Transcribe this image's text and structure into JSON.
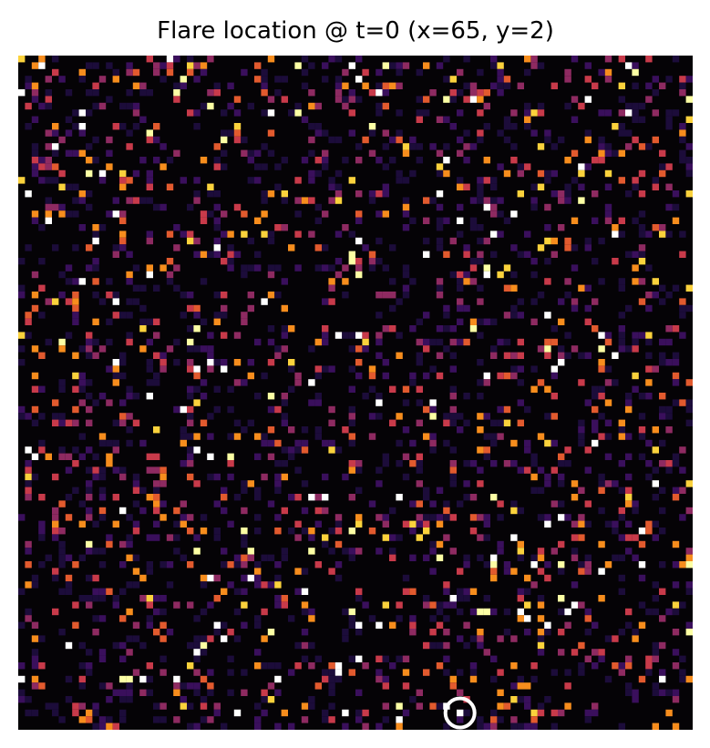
{
  "chart_data": {
    "type": "heatmap",
    "title": "Flare location @ t=0  (x=65, y=2)",
    "xlabel": "",
    "ylabel": "",
    "grid_size": [
      100,
      100
    ],
    "colormap": "inferno",
    "background": "#050306",
    "axes_visible": false,
    "flare": {
      "x": 65,
      "y": 2,
      "marker": "white-ring-with-dot"
    },
    "palette": [
      "#1c0c3a",
      "#3a0f5c",
      "#8e2a61",
      "#c83a4a",
      "#e25a2e",
      "#f78d1d",
      "#fbd23c",
      "#fcffa4",
      "#ffffff"
    ],
    "random_seed": 7,
    "density": 0.24
  }
}
